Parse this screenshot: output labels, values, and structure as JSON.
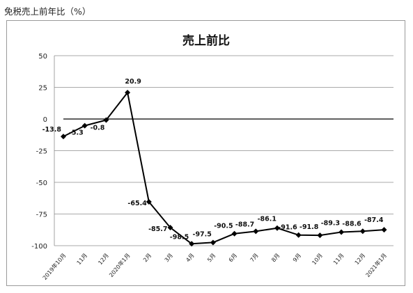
{
  "heading": "免税売上前年比（%）",
  "chart_data": {
    "type": "line",
    "title": "売上前比",
    "xlabel": "",
    "ylabel": "",
    "ylim": [
      -100,
      50
    ],
    "yticks": [
      50,
      25,
      0,
      -25,
      -50,
      -75,
      -100
    ],
    "grid": true,
    "legend": "none",
    "line_color": "#000000",
    "categories": [
      "2019年10月",
      "11月",
      "12月",
      "2020年1月",
      "2月",
      "3月",
      "4月",
      "5月",
      "6月",
      "7月",
      "8月",
      "9月",
      "10月",
      "11月",
      "12月",
      "2021年1月"
    ],
    "series": [
      {
        "values": [
          -13.8,
          -5.3,
          -0.8,
          20.9,
          -65.4,
          -85.7,
          -98.5,
          -97.5,
          -90.5,
          -88.7,
          -86.1,
          -91.6,
          -91.8,
          -89.3,
          -88.6,
          -87.4
        ]
      }
    ],
    "data_labels": [
      "-13.8",
      "-5.3",
      "-0.8",
      "20.9",
      "-65.4",
      "-85.7",
      "-98.5",
      "-97.5",
      "-90.5",
      "-88.7",
      "-86.1",
      "-91.6",
      "-91.8",
      "-89.3",
      "-88.6",
      "-87.4"
    ]
  }
}
